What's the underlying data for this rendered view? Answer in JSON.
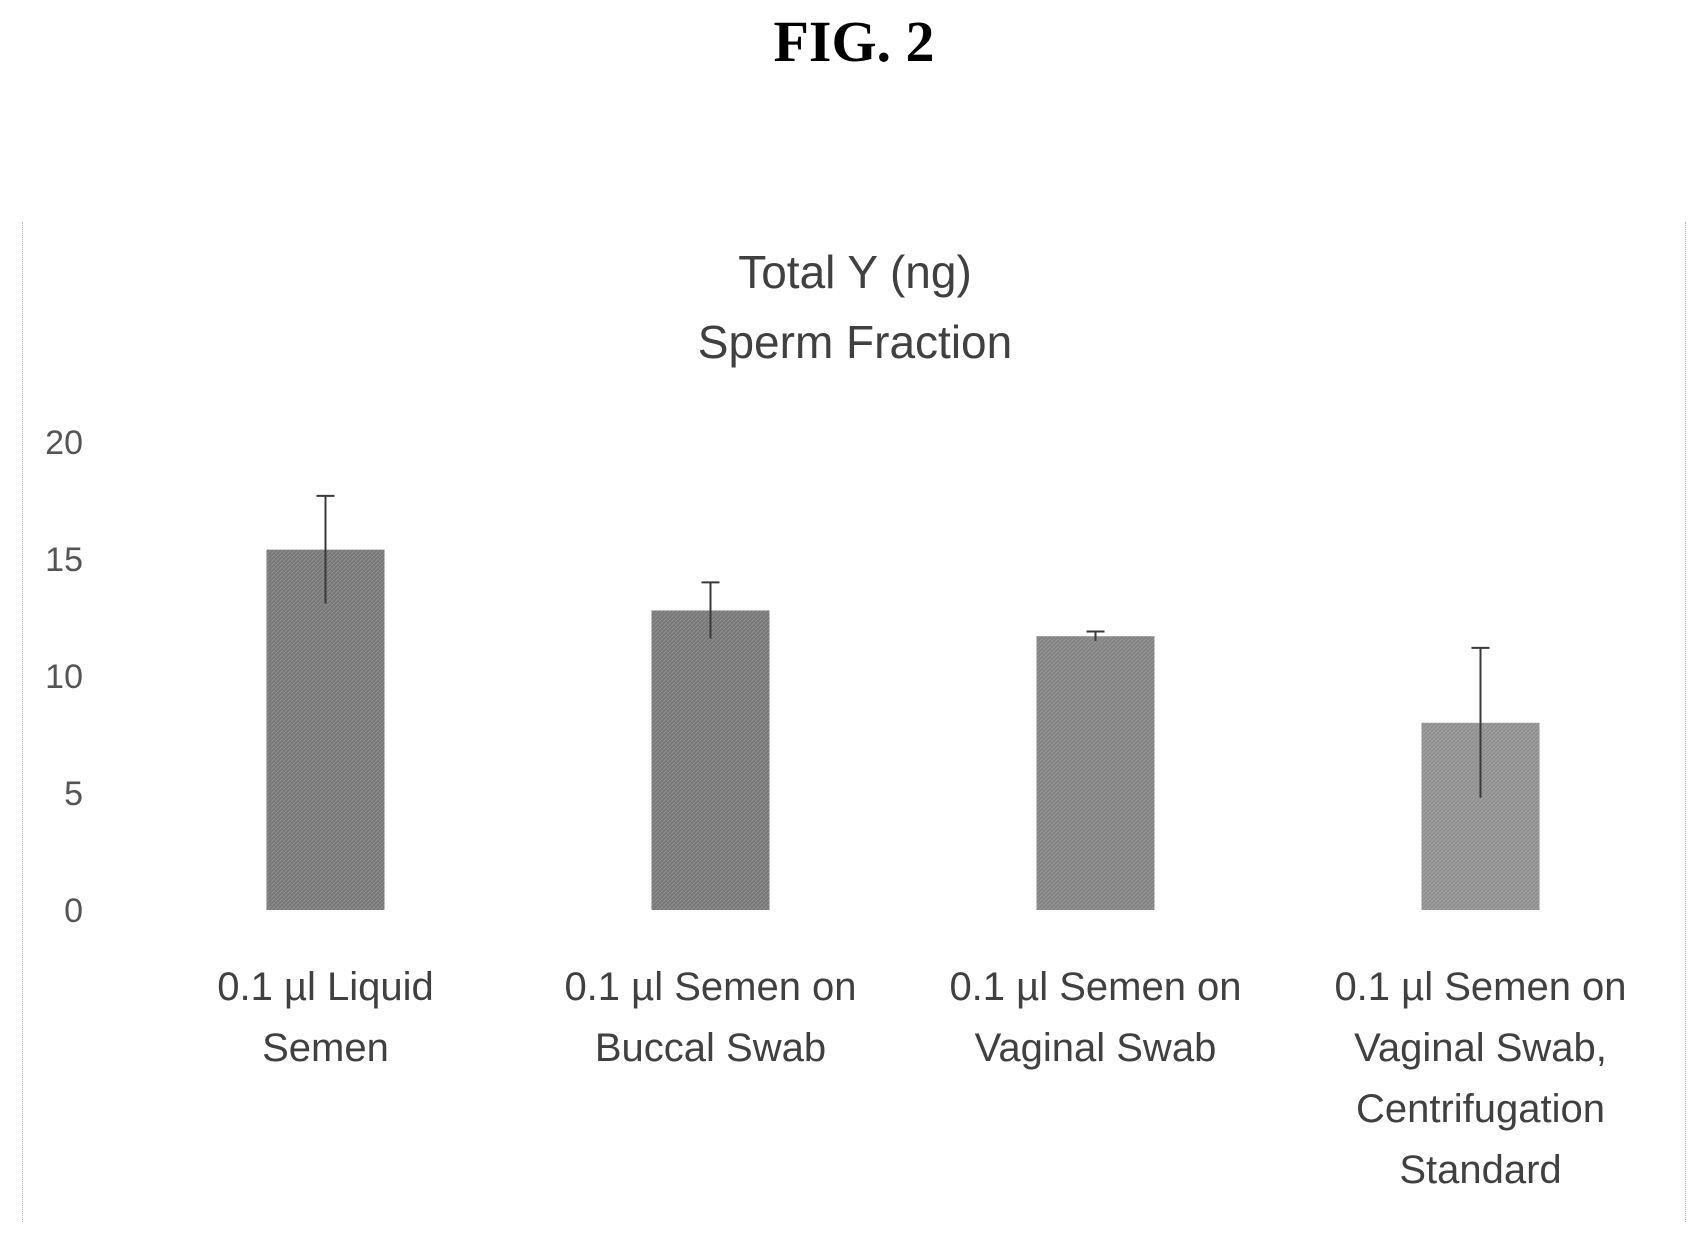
{
  "figure_label": "FIG. 2",
  "chart_data": {
    "type": "bar",
    "title": "Total Y (ng)",
    "subtitle": "Sperm Fraction",
    "xlabel": "",
    "ylabel": "",
    "ylim": [
      0,
      20
    ],
    "yticks": [
      0,
      5,
      10,
      15,
      20
    ],
    "categories": [
      [
        "0.1 µl Liquid",
        "Semen"
      ],
      [
        "0.1 µl Semen on",
        "Buccal Swab"
      ],
      [
        "0.1 µl Semen on",
        "Vaginal Swab"
      ],
      [
        "0.1 µl Semen on",
        "Vaginal Swab,",
        "Centrifugation",
        "Standard"
      ]
    ],
    "values": [
      15.4,
      12.8,
      11.7,
      8.0
    ],
    "errors": [
      2.3,
      1.2,
      0.2,
      3.2
    ],
    "grid": false,
    "legend": "none",
    "bar_colors": [
      "#777777",
      "#777777",
      "#828282",
      "#8f8f8f"
    ]
  }
}
